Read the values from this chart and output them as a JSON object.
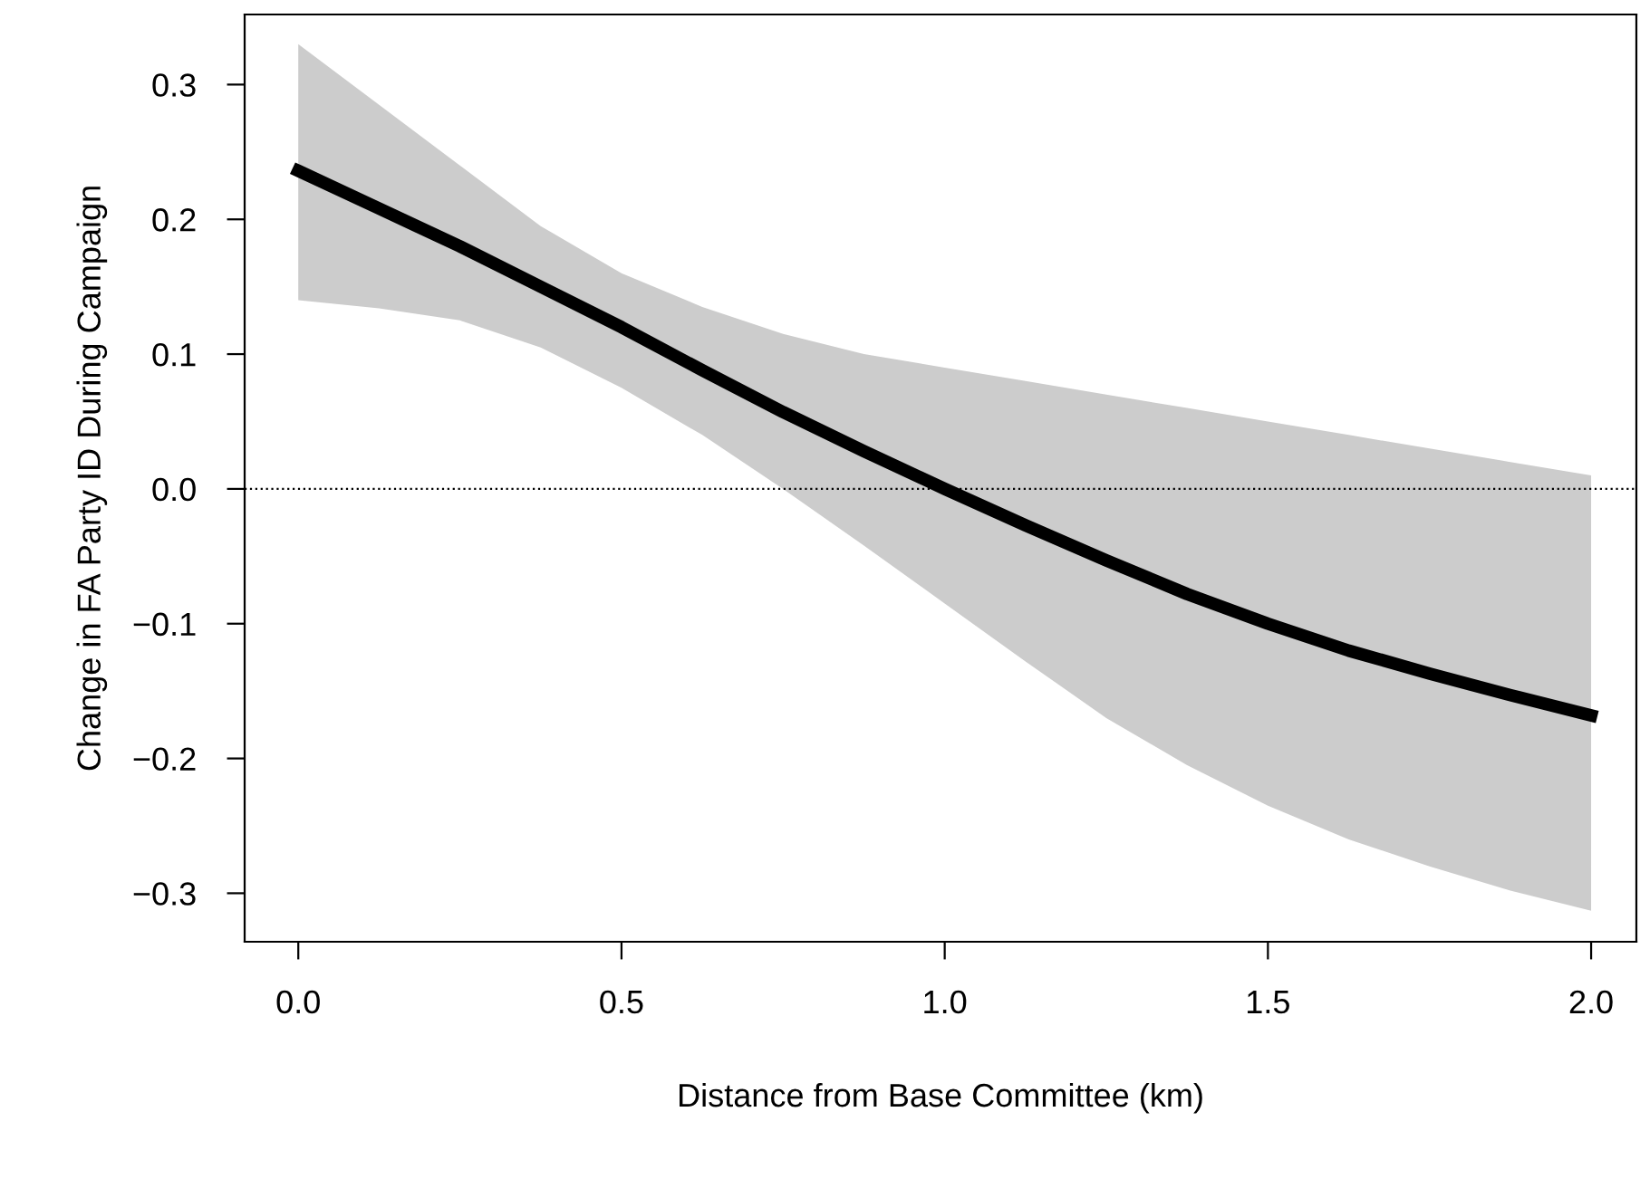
{
  "chart_data": {
    "type": "line",
    "xlabel": "Distance from Base Committee (km)",
    "ylabel": "Change in FA Party ID During Campaign",
    "x": [
      0,
      0.125,
      0.25,
      0.375,
      0.5,
      0.625,
      0.75,
      0.875,
      1.0,
      1.125,
      1.25,
      1.375,
      1.5,
      1.625,
      1.75,
      1.875,
      2.0
    ],
    "series": [
      {
        "color": "#000000",
        "values": [
          0.236,
          0.208,
          0.18,
          0.15,
          0.12,
          0.088,
          0.057,
          0.028,
          0.0,
          -0.027,
          -0.053,
          -0.078,
          -0.1,
          -0.12,
          -0.137,
          -0.153,
          -0.168
        ],
        "lower": [
          0.14,
          0.134,
          0.125,
          0.105,
          0.075,
          0.04,
          0.0,
          -0.042,
          -0.085,
          -0.128,
          -0.17,
          -0.205,
          -0.235,
          -0.26,
          -0.28,
          -0.298,
          -0.313
        ],
        "upper": [
          0.33,
          0.285,
          0.24,
          0.195,
          0.16,
          0.135,
          0.115,
          0.1,
          0.09,
          0.08,
          0.07,
          0.06,
          0.05,
          0.04,
          0.03,
          0.02,
          0.01
        ]
      }
    ],
    "xlim": [
      -0.083,
      2.07
    ],
    "ylim": [
      -0.336,
      0.352
    ],
    "xticks": [
      {
        "value": 0,
        "label": "0.0"
      },
      0.5,
      {
        "value": 1,
        "label": "1.0"
      },
      1.5,
      {
        "value": 2,
        "label": "2.0"
      }
    ],
    "yticks": [
      {
        "value": -0.3,
        "label": "−0.3"
      },
      {
        "value": -0.2,
        "label": "−0.2"
      },
      {
        "value": -0.1,
        "label": "−0.1"
      },
      {
        "value": 0,
        "label": "0.0"
      },
      0.1,
      0.2,
      0.3
    ],
    "ref_lines": [
      {
        "axis": "y",
        "value": 0,
        "line_style": "dotted",
        "color": "#000000"
      }
    ],
    "grid": false,
    "legend": false,
    "marker": "none",
    "line_style": "solid"
  }
}
